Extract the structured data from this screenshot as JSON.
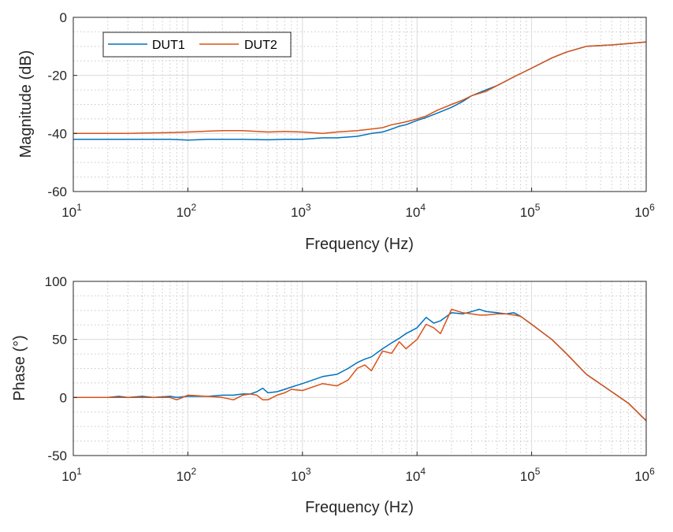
{
  "chart_data": [
    {
      "type": "line",
      "xscale": "log",
      "xlim": [
        10,
        1000000
      ],
      "ylim": [
        -60,
        0
      ],
      "grid": true,
      "minor_grid": true,
      "xlabel": "Frequency (Hz)",
      "ylabel": "Magnitude (dB)",
      "x_ticks": [
        {
          "base": "10",
          "exp": "1",
          "value": 10
        },
        {
          "base": "10",
          "exp": "2",
          "value": 100
        },
        {
          "base": "10",
          "exp": "3",
          "value": 1000
        },
        {
          "base": "10",
          "exp": "4",
          "value": 10000
        },
        {
          "base": "10",
          "exp": "5",
          "value": 100000
        },
        {
          "base": "10",
          "exp": "6",
          "value": 1000000
        }
      ],
      "y_ticks": [
        0,
        -20,
        -40,
        -60
      ],
      "legend": {
        "position": "top-left",
        "entries": [
          "DUT1",
          "DUT2"
        ]
      },
      "series": [
        {
          "name": "DUT1",
          "color": "#0072BD",
          "x": [
            10,
            20,
            30,
            50,
            70,
            100,
            150,
            200,
            300,
            500,
            700,
            1000,
            1500,
            2000,
            3000,
            4000,
            5000,
            6000,
            7000,
            8000,
            10000,
            12000,
            15000,
            20000,
            25000,
            30000,
            40000,
            50000,
            70000,
            100000,
            150000,
            200000,
            300000,
            500000,
            700000,
            1000000
          ],
          "y": [
            -42,
            -42,
            -42,
            -42,
            -42,
            -42.3,
            -42,
            -42,
            -42,
            -42.2,
            -42,
            -42,
            -41.5,
            -41.5,
            -41,
            -40,
            -39.5,
            -38.5,
            -37.5,
            -37,
            -35.5,
            -34.5,
            -33,
            -31,
            -29,
            -27,
            -25,
            -23.5,
            -20.5,
            -17.5,
            -14,
            -12,
            -10,
            -9.5,
            -9,
            -8.5
          ]
        },
        {
          "name": "DUT2",
          "color": "#D95319",
          "x": [
            10,
            20,
            30,
            50,
            70,
            100,
            150,
            200,
            300,
            500,
            700,
            1000,
            1500,
            2000,
            3000,
            4000,
            5000,
            6000,
            7000,
            8000,
            10000,
            12000,
            15000,
            20000,
            25000,
            30000,
            40000,
            50000,
            70000,
            100000,
            150000,
            200000,
            300000,
            500000,
            700000,
            1000000
          ],
          "y": [
            -40,
            -40,
            -40,
            -39.8,
            -39.7,
            -39.5,
            -39.2,
            -39,
            -39,
            -39.5,
            -39.3,
            -39.5,
            -40,
            -39.5,
            -39,
            -38.5,
            -38,
            -37,
            -36.5,
            -36,
            -35,
            -34,
            -32,
            -30,
            -28.5,
            -27,
            -25.5,
            -23.5,
            -20.5,
            -17.5,
            -14,
            -12,
            -10,
            -9.5,
            -9,
            -8.5
          ]
        }
      ]
    },
    {
      "type": "line",
      "xscale": "log",
      "xlim": [
        10,
        1000000
      ],
      "ylim": [
        -50,
        100
      ],
      "grid": true,
      "minor_grid": true,
      "xlabel": "Frequency (Hz)",
      "ylabel": "Phase (°)",
      "x_ticks": [
        {
          "base": "10",
          "exp": "1",
          "value": 10
        },
        {
          "base": "10",
          "exp": "2",
          "value": 100
        },
        {
          "base": "10",
          "exp": "3",
          "value": 1000
        },
        {
          "base": "10",
          "exp": "4",
          "value": 10000
        },
        {
          "base": "10",
          "exp": "5",
          "value": 100000
        },
        {
          "base": "10",
          "exp": "6",
          "value": 1000000
        }
      ],
      "y_ticks": [
        100,
        50,
        0,
        -50
      ],
      "series": [
        {
          "name": "DUT1",
          "color": "#0072BD",
          "x": [
            10,
            15,
            20,
            25,
            30,
            40,
            50,
            70,
            80,
            100,
            150,
            200,
            250,
            300,
            350,
            400,
            450,
            500,
            600,
            700,
            800,
            1000,
            1500,
            2000,
            2500,
            3000,
            3500,
            4000,
            5000,
            6000,
            7000,
            8000,
            10000,
            12000,
            14000,
            16000,
            20000,
            25000,
            30000,
            35000,
            40000,
            50000,
            60000,
            70000,
            80000,
            100000,
            150000,
            200000,
            300000,
            500000,
            700000,
            1000000
          ],
          "y": [
            0,
            0,
            0,
            1,
            0,
            1,
            0,
            1,
            0,
            1,
            1,
            2,
            2,
            3,
            3,
            5,
            8,
            4,
            5,
            7,
            9,
            12,
            18,
            20,
            25,
            30,
            33,
            35,
            42,
            47,
            51,
            55,
            60,
            69,
            64,
            66,
            73,
            72,
            74,
            76,
            74,
            73,
            72,
            73,
            70,
            63,
            50,
            38,
            20,
            5,
            -5,
            -20
          ]
        },
        {
          "name": "DUT2",
          "color": "#D95319",
          "x": [
            10,
            15,
            20,
            25,
            30,
            40,
            50,
            70,
            80,
            100,
            150,
            200,
            250,
            300,
            350,
            400,
            450,
            500,
            600,
            700,
            800,
            1000,
            1500,
            2000,
            2500,
            3000,
            3500,
            4000,
            5000,
            6000,
            7000,
            8000,
            10000,
            12000,
            14000,
            16000,
            20000,
            25000,
            30000,
            35000,
            40000,
            50000,
            60000,
            70000,
            80000,
            100000,
            150000,
            200000,
            300000,
            500000,
            700000,
            1000000
          ],
          "y": [
            0,
            0,
            0,
            0,
            0,
            0,
            0,
            0,
            -2,
            2,
            1,
            0,
            -2,
            2,
            3,
            2,
            -2,
            -2,
            2,
            4,
            7,
            6,
            12,
            10,
            15,
            25,
            28,
            23,
            40,
            38,
            48,
            42,
            50,
            63,
            60,
            55,
            76,
            73,
            72,
            71,
            71,
            72,
            72,
            71,
            70,
            63,
            50,
            38,
            20,
            5,
            -5,
            -20
          ]
        }
      ]
    }
  ]
}
